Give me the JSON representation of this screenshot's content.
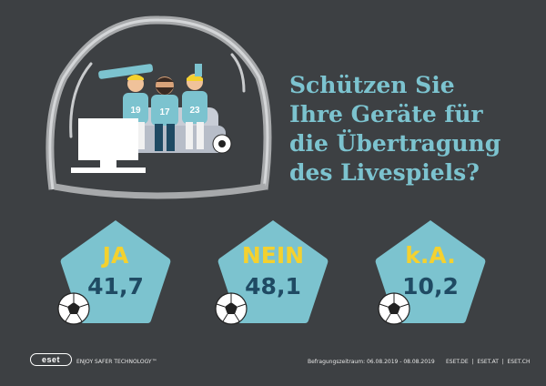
{
  "headline": {
    "line1": "Schützen Sie",
    "line2": "Ihre Geräte für",
    "line3": "die Übertragung",
    "line4": "des Livespiels?"
  },
  "jerseys": [
    "19",
    "17",
    "23"
  ],
  "stats": [
    {
      "label": "JA",
      "value": "41,7"
    },
    {
      "label": "NEIN",
      "value": "48,1"
    },
    {
      "label": "k.A.",
      "value": "10,2"
    }
  ],
  "footer": {
    "logo": "eset",
    "slogan": "ENJOY SAFER TECHNOLOGY™",
    "period": "Befragungszeitraum: 06.08.2019 - 08.08.2019",
    "links": "ESET.DE  |  ESET.AT  |  ESET.CH"
  },
  "colors": {
    "background": "#3d4043",
    "headline": "#7cc3cf",
    "badge": "#7cc3cf",
    "label": "#f4d12f",
    "value": "#1f4a63"
  },
  "icons": [
    "soccer-ball-icon",
    "glass-dome-icon",
    "fans-illustration-icon",
    "tv-icon"
  ]
}
